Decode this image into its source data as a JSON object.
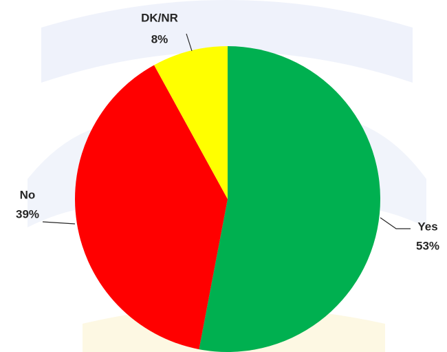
{
  "chart_data": {
    "type": "pie",
    "categories": [
      "Yes",
      "No",
      "DK/NR"
    ],
    "values": [
      53,
      39,
      8
    ],
    "value_labels": [
      "53%",
      "39%",
      "8%"
    ],
    "colors": [
      "#00b050",
      "#ff0000",
      "#ffff00"
    ]
  }
}
